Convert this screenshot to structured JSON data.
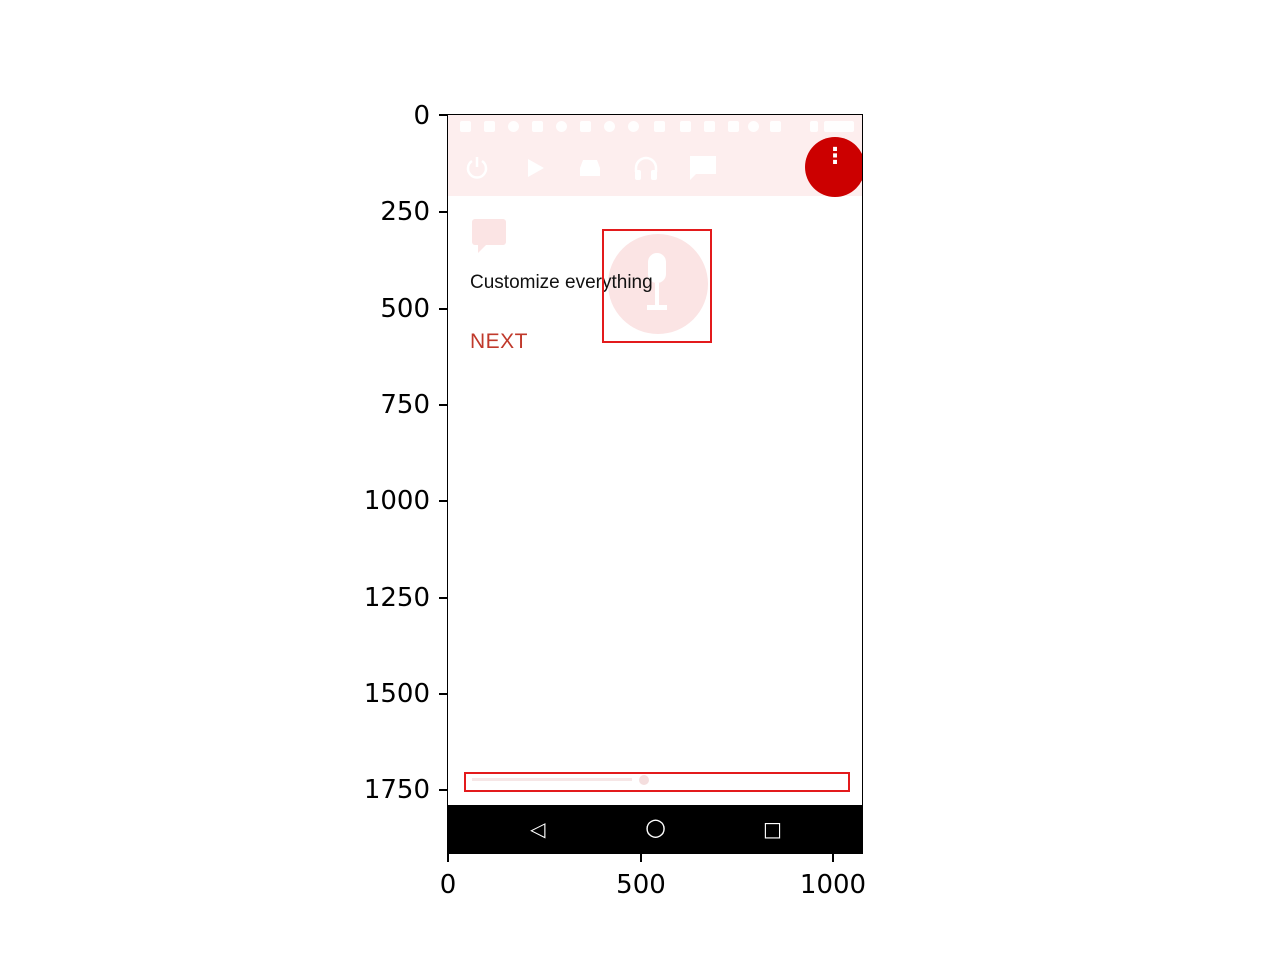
{
  "figure": {
    "y_ticks": [
      "0",
      "250",
      "500",
      "750",
      "1000",
      "1250",
      "1500",
      "1750"
    ],
    "x_ticks": [
      "0",
      "500",
      "1000"
    ]
  },
  "screen": {
    "toolbar_icons": [
      "power-icon",
      "play-icon",
      "car-icon",
      "headphones-icon",
      "message-icon"
    ],
    "menu_button_glyph": "⋮",
    "headline": "Customize everything",
    "next_label": "NEXT",
    "accent_color": "#cc0000",
    "highlight_color": "#e31a1c",
    "progress": 0.47
  },
  "nav_bar": {
    "back_glyph": "◁",
    "home_glyph": "○",
    "recents_glyph": "□"
  }
}
